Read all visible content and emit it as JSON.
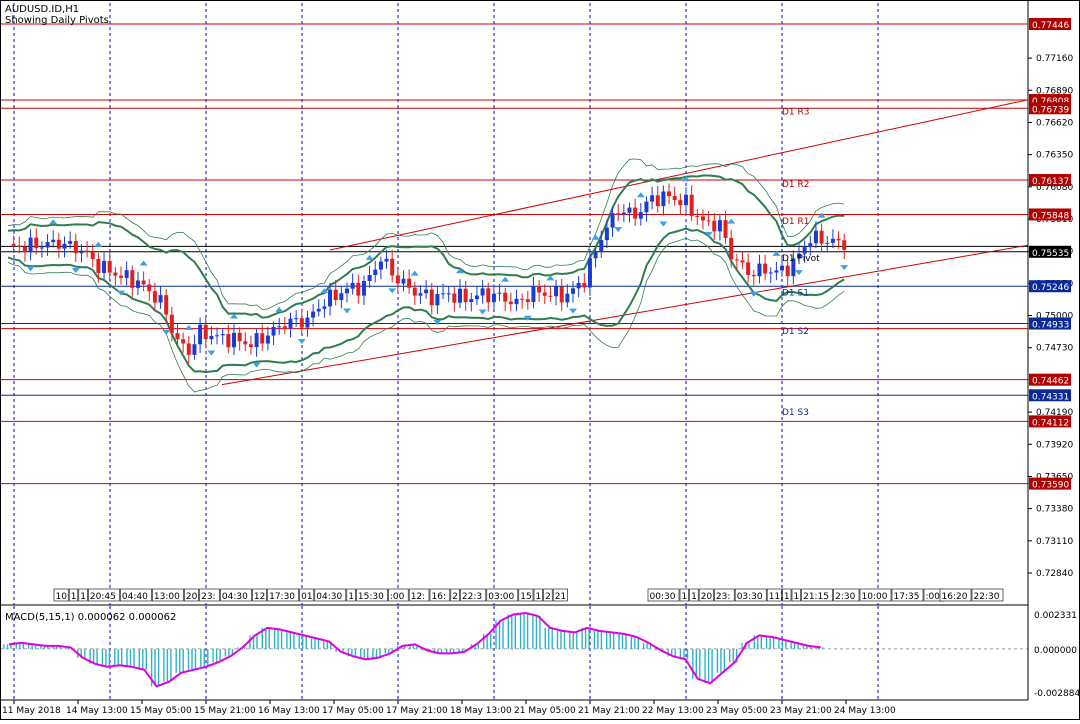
{
  "window": {
    "symbol_line": "AUDUSD.ID,H1",
    "subtitle": "Showing Daily Pivots"
  },
  "colors": {
    "background": "#ffffff",
    "frame": "#000000",
    "grid": "#0000cc",
    "bull_candle": "#1a3bd6",
    "bear_candle": "#e02020",
    "pivot_line": "#d00000",
    "current_price_line": "#000000",
    "bollinger": "#2e7d4f",
    "trend_line": "#d00000",
    "arrow_marker": "#3da0e0",
    "macd_hist": "#30b0c8",
    "macd_signal": "#e000e0",
    "label_red": "#b00000",
    "label_blue": "#0a2a9a",
    "label_black": "#000000"
  },
  "price_axis": {
    "ticks": [
      "0.77446",
      "0.77160",
      "0.76890",
      "0.76620",
      "0.76350",
      "0.76080",
      "0.75810",
      "0.75540",
      "0.75270",
      "0.75000",
      "0.74730",
      "0.74460",
      "0.74190",
      "0.73920",
      "0.73650",
      "0.73380",
      "0.73110",
      "0.72840"
    ],
    "visible_ticks": [
      "0.77160",
      "0.76890",
      "0.76620",
      "0.76350",
      "0.76080",
      "0.75810",
      "0.75540",
      "0.75270",
      "0.75000",
      "0.74730",
      "0.74190",
      "0.73920",
      "0.73650",
      "0.73380",
      "0.73110",
      "0.72840"
    ],
    "min": 0.7262,
    "max": 0.7762
  },
  "price_labels": [
    {
      "text": "0.77446",
      "price": 0.77446,
      "style": "red"
    },
    {
      "text": "0.76808",
      "price": 0.76808,
      "style": "red"
    },
    {
      "text": "0.76739",
      "price": 0.76739,
      "style": "red"
    },
    {
      "text": "0.76137",
      "price": 0.76137,
      "style": "red"
    },
    {
      "text": "0.75848",
      "price": 0.75848,
      "style": "red"
    },
    {
      "text": "0.75535",
      "price": 0.75535,
      "style": "black"
    },
    {
      "text": "0.75246",
      "price": 0.75246,
      "style": "blue"
    },
    {
      "text": "0.74933",
      "price": 0.74933,
      "style": "blue"
    },
    {
      "text": "0.74462",
      "price": 0.74462,
      "style": "red"
    },
    {
      "text": "0.74331",
      "price": 0.74331,
      "style": "blue"
    },
    {
      "text": "0.74112",
      "price": 0.74112,
      "style": "red"
    },
    {
      "text": "0.73590",
      "price": 0.7359,
      "style": "red"
    }
  ],
  "horizontal_levels": [
    {
      "price": 0.77446,
      "color": "red"
    },
    {
      "price": 0.76808,
      "color": "red"
    },
    {
      "price": 0.76739,
      "color": "red"
    },
    {
      "price": 0.76137,
      "color": "red"
    },
    {
      "price": 0.75848,
      "color": "red"
    },
    {
      "price": 0.7558,
      "color": "black"
    },
    {
      "price": 0.75535,
      "color": "black"
    },
    {
      "price": 0.75246,
      "color": "blue"
    },
    {
      "price": 0.74933,
      "color": "blue"
    },
    {
      "price": 0.7489,
      "color": "red"
    },
    {
      "price": 0.74462,
      "color": "red"
    },
    {
      "price": 0.74331,
      "color": "blue"
    },
    {
      "price": 0.74112,
      "color": "red"
    },
    {
      "price": 0.7359,
      "color": "red"
    }
  ],
  "pivot_tags": [
    {
      "text": "D1  R3",
      "price": 0.7672
    },
    {
      "text": "D1  R2",
      "price": 0.7611
    },
    {
      "text": "D1  R1",
      "price": 0.758
    },
    {
      "text": "D1  Pivot",
      "price": 0.7549
    },
    {
      "text": "D1  S1",
      "price": 0.752
    },
    {
      "text": "D1  S2",
      "price": 0.7488
    },
    {
      "text": "D1  S3",
      "price": 0.742
    }
  ],
  "time_axis": {
    "labels": [
      "11 May 2018",
      "14 May 13:00",
      "15 May 05:00",
      "15 May 21:00",
      "16 May 13:00",
      "17 May 05:00",
      "17 May 21:00",
      "18 May 13:00",
      "21 May 05:00",
      "21 May 21:00",
      "22 May 13:00",
      "23 May 05:00",
      "23 May 21:00",
      "24 May 13:00"
    ]
  },
  "session_strip": [
    "10",
    "1",
    "1",
    "20:45",
    "04:40",
    "13:00",
    "20",
    "23:",
    "04:30",
    "12",
    "17:30",
    "01",
    "04:30",
    "1",
    "15:30",
    ":00",
    "12:",
    "16:",
    "2",
    "22:3",
    "03:00",
    "15",
    "1",
    "2",
    "21",
    "00:30",
    "1",
    "1",
    "20",
    "23:",
    "03:30",
    "11",
    "1",
    "1",
    "21:15",
    "2:30",
    "10:00",
    "17:35",
    ":00",
    "16:20",
    "22:30"
  ],
  "macd": {
    "label": "MACD(5,15,1) 0.000062 0.000062",
    "ticks": [
      "0.002331",
      "0.000000",
      "-0.002884"
    ]
  },
  "chart_data": [
    {
      "type": "candlestick",
      "title": "AUDUSD.ID,H1",
      "subtitle": "Showing Daily Pivots",
      "ylim": [
        0.7262,
        0.7762
      ],
      "approximate_path": [
        [
          0,
          0.7557
        ],
        [
          5,
          0.7559
        ],
        [
          9,
          0.7561
        ],
        [
          13,
          0.7555
        ],
        [
          16,
          0.7542
        ],
        [
          19,
          0.7535
        ],
        [
          23,
          0.7528
        ],
        [
          27,
          0.7512
        ],
        [
          30,
          0.7478
        ],
        [
          32,
          0.747
        ],
        [
          34,
          0.7486
        ],
        [
          37,
          0.7482
        ],
        [
          40,
          0.748
        ],
        [
          43,
          0.7476
        ],
        [
          46,
          0.7484
        ],
        [
          49,
          0.7494
        ],
        [
          53,
          0.7496
        ],
        [
          56,
          0.7512
        ],
        [
          60,
          0.7522
        ],
        [
          63,
          0.7525
        ],
        [
          66,
          0.7548
        ],
        [
          69,
          0.753
        ],
        [
          72,
          0.752
        ],
        [
          75,
          0.7515
        ],
        [
          78,
          0.7518
        ],
        [
          81,
          0.7514
        ],
        [
          84,
          0.7518
        ],
        [
          87,
          0.7516
        ],
        [
          90,
          0.751
        ],
        [
          93,
          0.752
        ],
        [
          96,
          0.7518
        ],
        [
          99,
          0.7517
        ],
        [
          102,
          0.753
        ],
        [
          105,
          0.7566
        ],
        [
          108,
          0.7589
        ],
        [
          111,
          0.7584
        ],
        [
          114,
          0.7598
        ],
        [
          117,
          0.76
        ],
        [
          120,
          0.7594
        ],
        [
          123,
          0.7578
        ],
        [
          126,
          0.7576
        ],
        [
          128,
          0.7551
        ],
        [
          131,
          0.7536
        ],
        [
          134,
          0.7538
        ],
        [
          137,
          0.7537
        ],
        [
          139,
          0.7544
        ],
        [
          142,
          0.7565
        ],
        [
          145,
          0.7563
        ],
        [
          148,
          0.756
        ]
      ]
    },
    {
      "type": "bar",
      "title": "MACD(5,15,1) 0.000062 0.000062",
      "ylim": [
        -0.002884,
        0.002331
      ],
      "approximate_values": [
        0.0003,
        0.0004,
        0.0003,
        0.0002,
        0.0002,
        0.0001,
        -0.0006,
        -0.001,
        -0.0012,
        -0.0011,
        -0.0012,
        -0.0014,
        -0.0025,
        -0.0022,
        -0.0016,
        -0.0014,
        -0.0012,
        -0.0009,
        -0.0005,
        0.0001,
        0.0009,
        0.0014,
        0.0013,
        0.0011,
        0.0009,
        0.0007,
        0.0005,
        -0.0002,
        -0.0005,
        -0.0007,
        -0.0006,
        -0.0003,
        0.0002,
        0.0003,
        -0.0001,
        -0.0003,
        -0.0003,
        -0.0002,
        0.0003,
        0.001,
        0.0019,
        0.0023,
        0.0024,
        0.0022,
        0.0014,
        0.0012,
        0.0011,
        0.0014,
        0.0012,
        0.0011,
        0.001,
        0.0008,
        0.0004,
        -0.0001,
        -0.0005,
        -0.0007,
        -0.002,
        -0.0023,
        -0.0016,
        -0.0009,
        0.0004,
        0.0009,
        0.0008,
        0.0006,
        0.0004,
        0.0002,
        0.0001
      ]
    }
  ]
}
